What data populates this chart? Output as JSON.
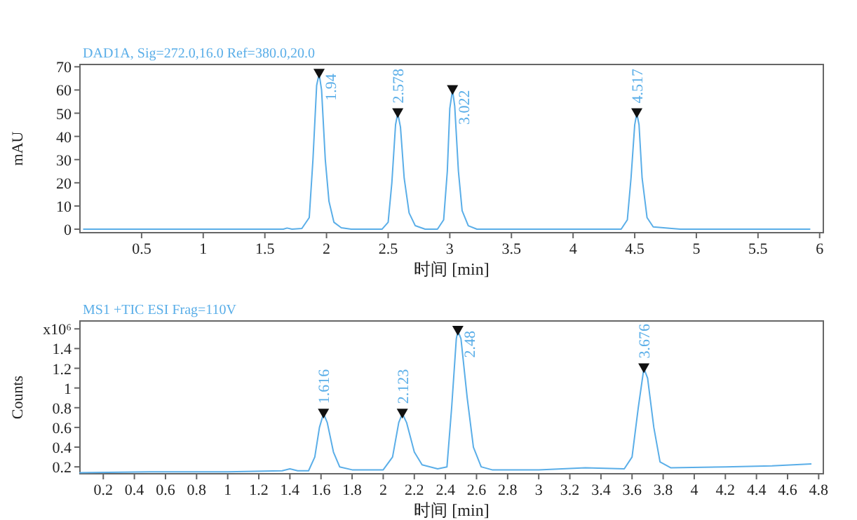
{
  "chart_data": [
    {
      "type": "line",
      "title": "DAD1A, Sig=272.0,16.0 Ref=380.0,20.0",
      "xlabel": "时间 [min]",
      "ylabel": "mAU",
      "xlim": [
        0,
        6.03
      ],
      "ylim": [
        -1.5,
        71
      ],
      "xticks": [
        0.5,
        1,
        1.5,
        2,
        2.5,
        3,
        3.5,
        4,
        4.5,
        5,
        5.5,
        6
      ],
      "yticks": [
        0,
        10,
        20,
        30,
        40,
        50,
        60,
        70
      ],
      "series": [
        {
          "color": "#5aaee8",
          "x": [
            0.03,
            1.0,
            1.6,
            1.65,
            1.68,
            1.72,
            1.8,
            1.86,
            1.89,
            1.92,
            1.94,
            1.96,
            1.99,
            2.02,
            2.06,
            2.12,
            2.2,
            2.45,
            2.5,
            2.53,
            2.56,
            2.578,
            2.6,
            2.63,
            2.67,
            2.72,
            2.8,
            2.9,
            2.95,
            2.98,
            3.0,
            3.022,
            3.04,
            3.07,
            3.1,
            3.15,
            3.22,
            4.39,
            4.44,
            4.47,
            4.5,
            4.517,
            4.535,
            4.56,
            4.6,
            4.65,
            4.8,
            4.87,
            5.92
          ],
          "values": [
            0,
            0,
            0,
            0,
            0.5,
            0,
            0.3,
            5,
            30,
            62,
            67,
            60,
            30,
            12,
            3,
            0.6,
            0,
            0,
            3,
            20,
            45,
            50,
            44,
            22,
            7,
            1.5,
            0,
            0,
            4,
            25,
            52,
            60,
            53,
            25,
            8,
            1.5,
            0,
            0,
            4,
            22,
            45,
            50,
            45,
            22,
            5,
            1,
            0.3,
            0,
            0
          ]
        },
        {
          "type": "scatter",
          "marker": "triangle",
          "color": "#111111",
          "x": [
            1.94,
            2.578,
            3.022,
            4.517
          ],
          "values": [
            67,
            50,
            60,
            50
          ]
        }
      ],
      "annotations": [
        {
          "text": "1.94",
          "x": 1.94,
          "y": 67
        },
        {
          "text": "2.578",
          "x": 2.578,
          "y": 50
        },
        {
          "text": "3.022",
          "x": 3.022,
          "y": 60
        },
        {
          "text": "4.517",
          "x": 4.517,
          "y": 50
        }
      ]
    },
    {
      "type": "line",
      "title": "MS1  +TIC ESI Frag=110V",
      "xlabel": "时间 [min]",
      "ylabel": "Counts",
      "xlim": [
        0.05,
        4.83
      ],
      "ylim": [
        0.13,
        1.68
      ],
      "xticks": [
        0.2,
        0.4,
        0.6,
        0.8,
        1,
        1.2,
        1.4,
        1.6,
        1.8,
        2,
        2.2,
        2.4,
        2.6,
        2.8,
        3,
        3.2,
        3.4,
        3.6,
        3.8,
        4,
        4.2,
        4.4,
        4.6,
        4.8
      ],
      "yticks": [
        0.2,
        0.4,
        0.6,
        0.8,
        1,
        1.2,
        1.4,
        {
          "value": 1.6,
          "label": "x10⁶"
        }
      ],
      "series": [
        {
          "color": "#5aaee8",
          "x": [
            0.05,
            0.5,
            1.0,
            1.35,
            1.4,
            1.45,
            1.52,
            1.56,
            1.59,
            1.616,
            1.64,
            1.68,
            1.72,
            1.8,
            2.0,
            2.06,
            2.1,
            2.123,
            2.15,
            2.2,
            2.25,
            2.35,
            2.41,
            2.44,
            2.47,
            2.48,
            2.5,
            2.54,
            2.58,
            2.63,
            2.7,
            3.0,
            3.3,
            3.55,
            3.6,
            3.64,
            3.676,
            3.7,
            3.74,
            3.78,
            3.85,
            4.2,
            4.5,
            4.75
          ],
          "values": [
            0.14,
            0.15,
            0.15,
            0.16,
            0.18,
            0.16,
            0.16,
            0.3,
            0.6,
            0.74,
            0.65,
            0.35,
            0.2,
            0.17,
            0.17,
            0.3,
            0.65,
            0.74,
            0.65,
            0.35,
            0.22,
            0.18,
            0.2,
            0.8,
            1.5,
            1.58,
            1.5,
            0.9,
            0.4,
            0.2,
            0.17,
            0.17,
            0.19,
            0.18,
            0.3,
            0.8,
            1.2,
            1.1,
            0.6,
            0.25,
            0.19,
            0.2,
            0.21,
            0.23
          ]
        },
        {
          "type": "scatter",
          "marker": "triangle",
          "color": "#111111",
          "x": [
            1.616,
            2.123,
            2.48,
            3.676
          ],
          "values": [
            0.74,
            0.74,
            1.58,
            1.2
          ]
        }
      ],
      "annotations": [
        {
          "text": "1.616",
          "x": 1.616,
          "y": 0.74
        },
        {
          "text": "2.123",
          "x": 2.123,
          "y": 0.74
        },
        {
          "text": "2.48",
          "x": 2.48,
          "y": 1.58
        },
        {
          "text": "3.676",
          "x": 3.676,
          "y": 1.2
        }
      ]
    }
  ]
}
